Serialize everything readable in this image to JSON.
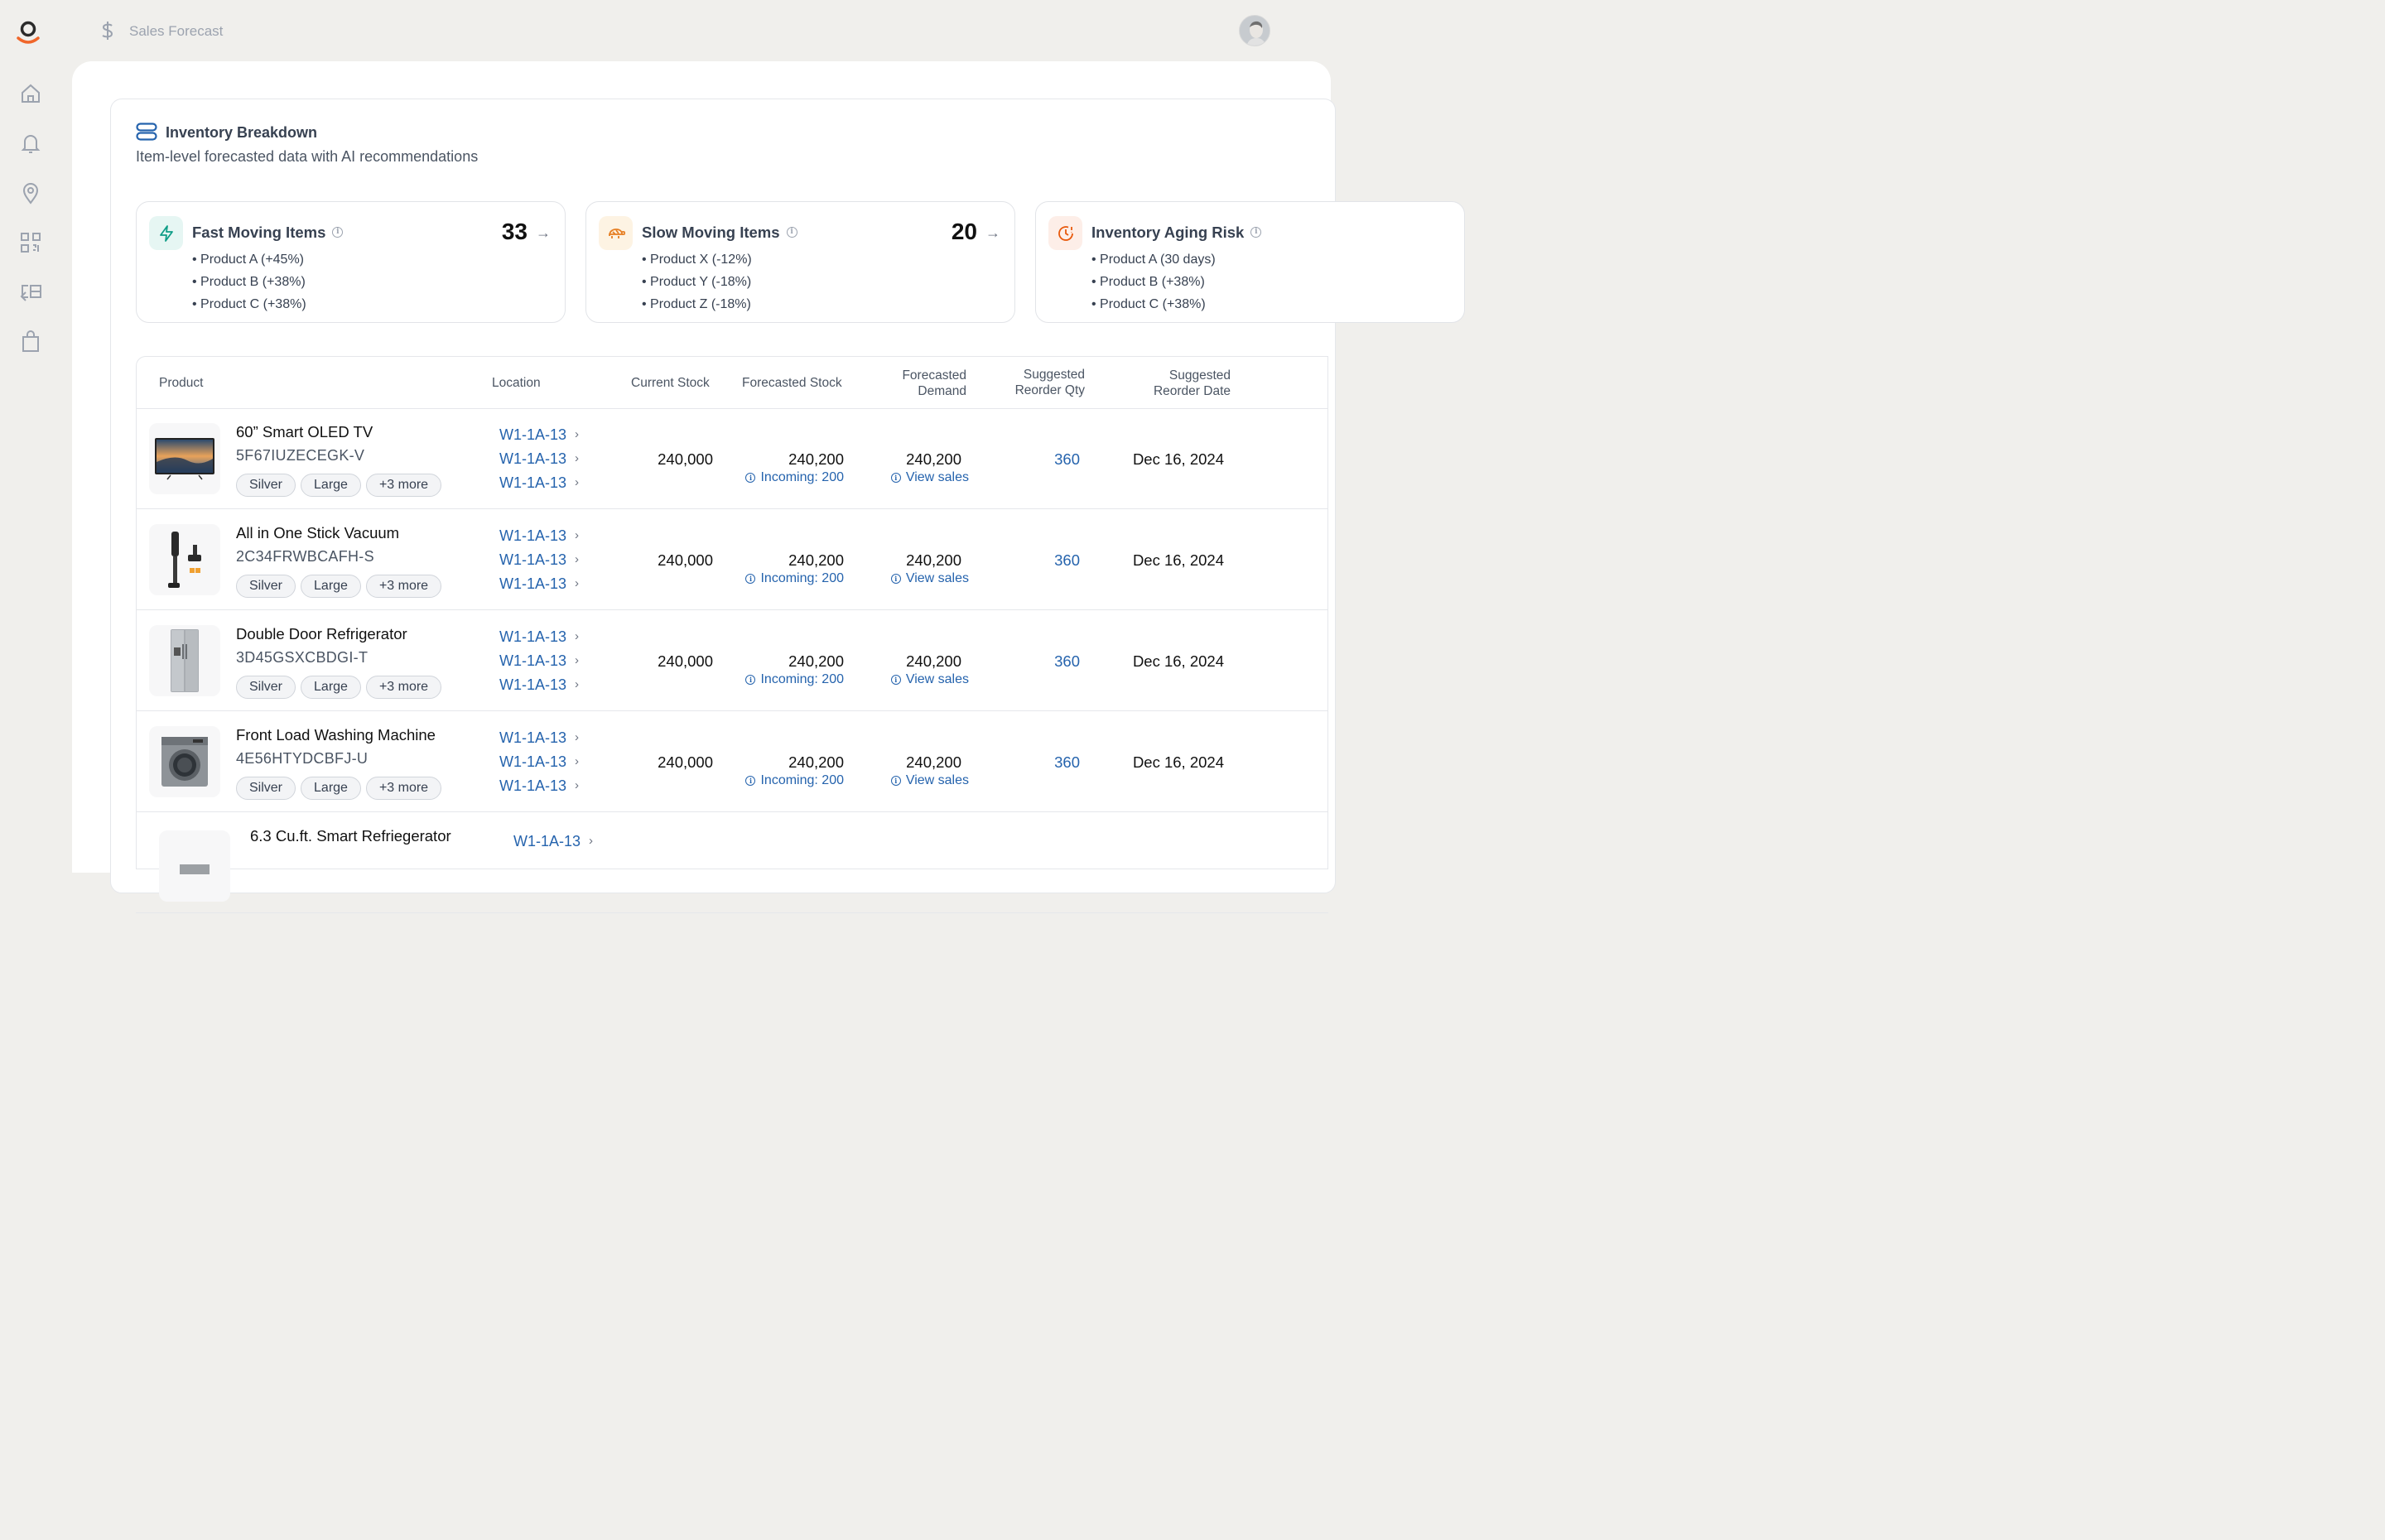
{
  "app": {
    "page_title": "Sales Forecast",
    "logo_icon": "brand-logo-icon",
    "sidebar_icons": [
      "home-icon",
      "bell-icon",
      "location-pin-icon",
      "qr-code-icon",
      "returns-icon",
      "shopping-bag-icon"
    ]
  },
  "section": {
    "title": "Inventory Breakdown",
    "subtitle": "Item-level forecasted data with AI recommendations"
  },
  "stats": [
    {
      "title": "Fast Moving Items",
      "value": "33",
      "color": "#0f9d87",
      "items": [
        "• Product A (+45%)",
        "• Product B (+38%)",
        "• Product C (+38%)"
      ]
    },
    {
      "title": "Slow Moving Items",
      "value": "20",
      "color": "#e67e22",
      "items": [
        "• Product X (-12%)",
        "• Product Y (-18%)",
        "• Product Z (-18%)"
      ]
    },
    {
      "title": "Inventory Aging Risk",
      "value": "",
      "color": "#e8590c",
      "items": [
        "• Product A (30 days)",
        "• Product B (+38%)",
        "• Product C (+38%)"
      ]
    }
  ],
  "table": {
    "headers": {
      "product": "Product",
      "location": "Location",
      "current_stock": "Current Stock",
      "forecasted_stock": "Forecasted Stock",
      "forecasted_demand_1": "Forecasted",
      "forecasted_demand_2": "Demand",
      "suggested_qty_1": "Suggested",
      "suggested_qty_2": "Reorder Qty",
      "suggested_date_1": "Suggested",
      "suggested_date_2": "Reorder Date"
    },
    "rows": [
      {
        "name": "60” Smart OLED TV",
        "sku": "5F67IUZECEGK-V",
        "tags": [
          "Silver",
          "Large",
          "+3 more"
        ],
        "locations": [
          "W1-1A-13",
          "W1-1A-13",
          "W1-1A-13"
        ],
        "current_stock": "240,000",
        "forecasted_stock": "240,200",
        "incoming": "Incoming: 200",
        "forecasted_demand": "240,200",
        "view_sales": "View sales",
        "reorder_qty": "360",
        "reorder_date": "Dec 16, 2024"
      },
      {
        "name": "All in One Stick Vacuum",
        "sku": "2C34FRWBCAFH-S",
        "tags": [
          "Silver",
          "Large",
          "+3 more"
        ],
        "locations": [
          "W1-1A-13",
          "W1-1A-13",
          "W1-1A-13"
        ],
        "current_stock": "240,000",
        "forecasted_stock": "240,200",
        "incoming": "Incoming: 200",
        "forecasted_demand": "240,200",
        "view_sales": "View sales",
        "reorder_qty": "360",
        "reorder_date": "Dec 16, 2024"
      },
      {
        "name": "Double Door Refrigerator",
        "sku": "3D45GSXCBDGI-T",
        "tags": [
          "Silver",
          "Large",
          "+3 more"
        ],
        "locations": [
          "W1-1A-13",
          "W1-1A-13",
          "W1-1A-13"
        ],
        "current_stock": "240,000",
        "forecasted_stock": "240,200",
        "incoming": "Incoming: 200",
        "forecasted_demand": "240,200",
        "view_sales": "View sales",
        "reorder_qty": "360",
        "reorder_date": "Dec 16, 2024"
      },
      {
        "name": "Front Load Washing Machine",
        "sku": "4E56HTYDCBFJ-U",
        "tags": [
          "Silver",
          "Large",
          "+3 more"
        ],
        "locations": [
          "W1-1A-13",
          "W1-1A-13",
          "W1-1A-13"
        ],
        "current_stock": "240,000",
        "forecasted_stock": "240,200",
        "incoming": "Incoming: 200",
        "forecasted_demand": "240,200",
        "view_sales": "View sales",
        "reorder_qty": "360",
        "reorder_date": "Dec 16, 2024"
      },
      {
        "name": "6.3 Cu.ft. Smart Refriegerator",
        "sku": "",
        "tags": [],
        "locations": [
          "W1-1A-13"
        ],
        "current_stock": "",
        "forecasted_stock": "",
        "incoming": "",
        "forecasted_demand": "",
        "view_sales": "",
        "reorder_qty": "",
        "reorder_date": ""
      }
    ]
  }
}
